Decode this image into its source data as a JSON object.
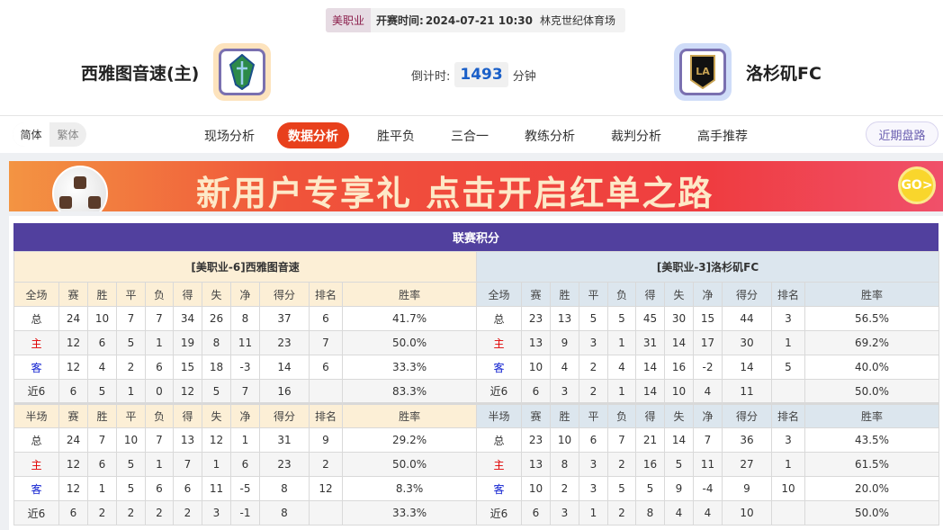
{
  "match": {
    "league": "美职业",
    "time_label": "开赛时间:",
    "time": "2024-07-21 10:30",
    "venue": "林克世纪体育场"
  },
  "home": {
    "name": "西雅图音速(主)",
    "logo": "seattle-sounders-crest"
  },
  "away": {
    "name": "洛杉矶FC",
    "logo": "lafc-crest"
  },
  "countdown": {
    "label": "倒计时:",
    "value": "1493",
    "unit": "分钟"
  },
  "nav": {
    "lang": [
      "简体",
      "繁体"
    ],
    "tabs": [
      "现场分析",
      "数据分析",
      "胜平负",
      "三合一",
      "教练分析",
      "裁判分析",
      "高手推荐"
    ],
    "active": 1,
    "recent": "近期盘路"
  },
  "banner": {
    "text": "新用户专享礼 点击开启红单之路",
    "go": "GO>"
  },
  "colors": {
    "accent": "#e8401c",
    "title_bar": "#51409e",
    "home_header": "#fcefd6",
    "away_header": "#dce6ee"
  },
  "standings": {
    "title": "联赛积分",
    "columns_full": [
      "全场",
      "赛",
      "胜",
      "平",
      "负",
      "得",
      "失",
      "净",
      "得分",
      "排名",
      "胜率"
    ],
    "columns_half": [
      "半场",
      "赛",
      "胜",
      "平",
      "负",
      "得",
      "失",
      "净",
      "得分",
      "排名",
      "胜率"
    ],
    "home": {
      "header": "[美职业-6]西雅图音速",
      "full": [
        [
          "总",
          "24",
          "10",
          "7",
          "7",
          "34",
          "26",
          "8",
          "37",
          "6",
          "41.7%"
        ],
        [
          "主",
          "12",
          "6",
          "5",
          "1",
          "19",
          "8",
          "11",
          "23",
          "7",
          "50.0%"
        ],
        [
          "客",
          "12",
          "4",
          "2",
          "6",
          "15",
          "18",
          "-3",
          "14",
          "6",
          "33.3%"
        ],
        [
          "近6",
          "6",
          "5",
          "1",
          "0",
          "12",
          "5",
          "7",
          "16",
          "",
          "83.3%"
        ]
      ],
      "half": [
        [
          "总",
          "24",
          "7",
          "10",
          "7",
          "13",
          "12",
          "1",
          "31",
          "9",
          "29.2%"
        ],
        [
          "主",
          "12",
          "6",
          "5",
          "1",
          "7",
          "1",
          "6",
          "23",
          "2",
          "50.0%"
        ],
        [
          "客",
          "12",
          "1",
          "5",
          "6",
          "6",
          "11",
          "-5",
          "8",
          "12",
          "8.3%"
        ],
        [
          "近6",
          "6",
          "2",
          "2",
          "2",
          "2",
          "3",
          "-1",
          "8",
          "",
          "33.3%"
        ]
      ]
    },
    "away": {
      "header": "[美职业-3]洛杉矶FC",
      "full": [
        [
          "总",
          "23",
          "13",
          "5",
          "5",
          "45",
          "30",
          "15",
          "44",
          "3",
          "56.5%"
        ],
        [
          "主",
          "13",
          "9",
          "3",
          "1",
          "31",
          "14",
          "17",
          "30",
          "1",
          "69.2%"
        ],
        [
          "客",
          "10",
          "4",
          "2",
          "4",
          "14",
          "16",
          "-2",
          "14",
          "5",
          "40.0%"
        ],
        [
          "近6",
          "6",
          "3",
          "2",
          "1",
          "14",
          "10",
          "4",
          "11",
          "",
          "50.0%"
        ]
      ],
      "half": [
        [
          "总",
          "23",
          "10",
          "6",
          "7",
          "21",
          "14",
          "7",
          "36",
          "3",
          "43.5%"
        ],
        [
          "主",
          "13",
          "8",
          "3",
          "2",
          "16",
          "5",
          "11",
          "27",
          "1",
          "61.5%"
        ],
        [
          "客",
          "10",
          "2",
          "3",
          "5",
          "5",
          "9",
          "-4",
          "9",
          "10",
          "20.0%"
        ],
        [
          "近6",
          "6",
          "3",
          "1",
          "2",
          "8",
          "4",
          "4",
          "10",
          "",
          "50.0%"
        ]
      ]
    }
  }
}
